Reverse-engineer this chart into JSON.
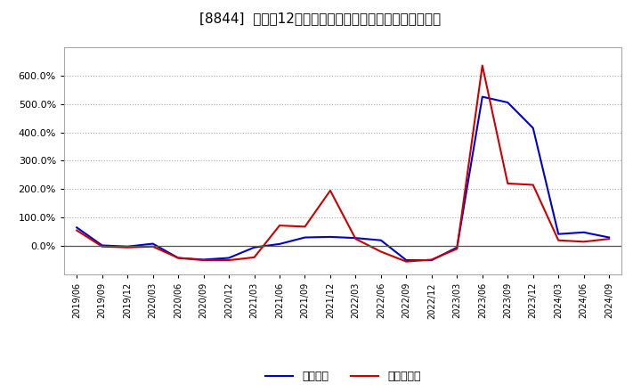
{
  "title": "[8844]  利益だ12か月移動合計の対前年同期増減率の推移",
  "x_labels": [
    "2019/06",
    "2019/09",
    "2019/12",
    "2020/03",
    "2020/06",
    "2020/09",
    "2020/12",
    "2021/03",
    "2021/06",
    "2021/09",
    "2021/12",
    "2022/03",
    "2022/06",
    "2022/09",
    "2022/12",
    "2023/03",
    "2023/06",
    "2023/09",
    "2023/12",
    "2024/03",
    "2024/06",
    "2024/09"
  ],
  "keijo_rieki": [
    0.65,
    0.02,
    -0.02,
    0.08,
    -0.42,
    -0.48,
    -0.42,
    -0.05,
    0.07,
    0.3,
    0.32,
    0.28,
    0.2,
    -0.5,
    -0.5,
    -0.05,
    5.25,
    5.05,
    4.15,
    0.42,
    0.48,
    0.3
  ],
  "touki_junrieki": [
    0.55,
    -0.02,
    -0.05,
    -0.02,
    -0.42,
    -0.5,
    -0.5,
    -0.4,
    0.72,
    0.68,
    1.95,
    0.25,
    -0.2,
    -0.55,
    -0.48,
    -0.1,
    6.35,
    2.2,
    2.15,
    0.2,
    0.15,
    0.25
  ],
  "keijo_color": "#0000cc",
  "touki_color": "#cc0000",
  "background_color": "#ffffff",
  "plot_bg_color": "#ffffff",
  "grid_color": "#aaaaaa",
  "ylim_min": -1.0,
  "ylim_max": 7.0,
  "legend_keijo": "経常利益",
  "legend_touki": "当期純利益",
  "yticks": [
    0,
    1.0,
    2.0,
    3.0,
    4.0,
    5.0,
    6.0
  ],
  "ytick_labels": [
    "0.0%",
    "100.0%",
    "200.0%",
    "300.0%",
    "400.0%",
    "500.0%",
    "600.0%"
  ]
}
